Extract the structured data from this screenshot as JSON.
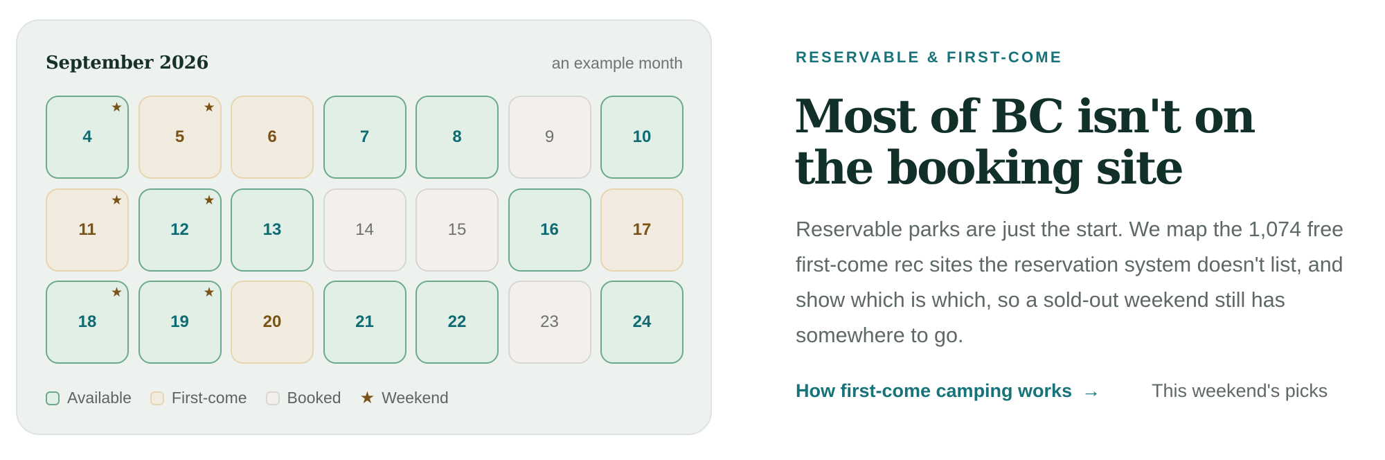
{
  "calendar": {
    "title": "September 2026",
    "note": "an example month",
    "weeks": [
      [
        {
          "day": "4",
          "status": "available",
          "weekend": true
        },
        {
          "day": "5",
          "status": "first",
          "weekend": true
        },
        {
          "day": "6",
          "status": "first",
          "weekend": false
        },
        {
          "day": "7",
          "status": "available",
          "weekend": false
        },
        {
          "day": "8",
          "status": "available",
          "weekend": false
        },
        {
          "day": "9",
          "status": "booked",
          "weekend": false
        },
        {
          "day": "10",
          "status": "available",
          "weekend": false
        }
      ],
      [
        {
          "day": "11",
          "status": "first",
          "weekend": true
        },
        {
          "day": "12",
          "status": "available",
          "weekend": true
        },
        {
          "day": "13",
          "status": "available",
          "weekend": false
        },
        {
          "day": "14",
          "status": "booked",
          "weekend": false
        },
        {
          "day": "15",
          "status": "booked",
          "weekend": false
        },
        {
          "day": "16",
          "status": "available",
          "weekend": false
        },
        {
          "day": "17",
          "status": "first",
          "weekend": false
        }
      ],
      [
        {
          "day": "18",
          "status": "available",
          "weekend": true
        },
        {
          "day": "19",
          "status": "available",
          "weekend": true
        },
        {
          "day": "20",
          "status": "first",
          "weekend": false
        },
        {
          "day": "21",
          "status": "available",
          "weekend": false
        },
        {
          "day": "22",
          "status": "available",
          "weekend": false
        },
        {
          "day": "23",
          "status": "booked",
          "weekend": false
        },
        {
          "day": "24",
          "status": "available",
          "weekend": false
        }
      ]
    ],
    "legend": {
      "available": "Available",
      "first": "First-come",
      "booked": "Booked",
      "weekend": "Weekend"
    },
    "weekend_icon": "star-icon"
  },
  "hero": {
    "eyebrow": "RESERVABLE & FIRST-COME",
    "headline_line1": "Most of BC isn't on",
    "headline_line2": "the booking site",
    "body": "Reservable parks are just the start. We map the 1,074 free first-come rec sites the reservation system doesn't list, and show which is which, so a sold-out weekend still has somewhere to go.",
    "primary_link": "How first-come camping works",
    "primary_link_icon": "arrow-right-icon",
    "secondary_link": "This weekend's picks"
  },
  "colors": {
    "accent": "#17737a",
    "heading": "#12302a",
    "available_bg": "#e2efe7",
    "first_bg": "#f1ecdf",
    "booked_bg": "#f2efed"
  }
}
